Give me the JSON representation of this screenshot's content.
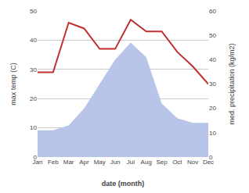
{
  "chart_data": {
    "type": "line",
    "categories": [
      "Jan",
      "Feb",
      "Mar",
      "Apr",
      "May",
      "Jun",
      "Jul",
      "Aug",
      "Sep",
      "Oct",
      "Nov",
      "Dec"
    ],
    "xlabel": "date (month)",
    "ylabel": "max temp (C)",
    "y2label": "med. precipitation (kg/m2)",
    "series": [
      {
        "type": "area",
        "axis": "y2",
        "color": "#b8c4e8",
        "values": [
          11,
          11,
          13,
          20,
          30,
          40,
          47,
          41,
          22,
          16,
          14,
          14
        ]
      },
      {
        "type": "line",
        "color": "#c03030",
        "values": [
          29,
          29,
          46,
          44,
          37,
          37,
          47,
          43,
          43,
          36,
          31,
          25
        ]
      }
    ],
    "ylim": [
      0,
      50
    ],
    "yticks": [
      0,
      10,
      20,
      30,
      40,
      50
    ],
    "y2lim": [
      0,
      60
    ],
    "y2ticks": [
      0,
      10,
      20,
      30,
      40,
      50,
      60
    ],
    "grid": true
  }
}
